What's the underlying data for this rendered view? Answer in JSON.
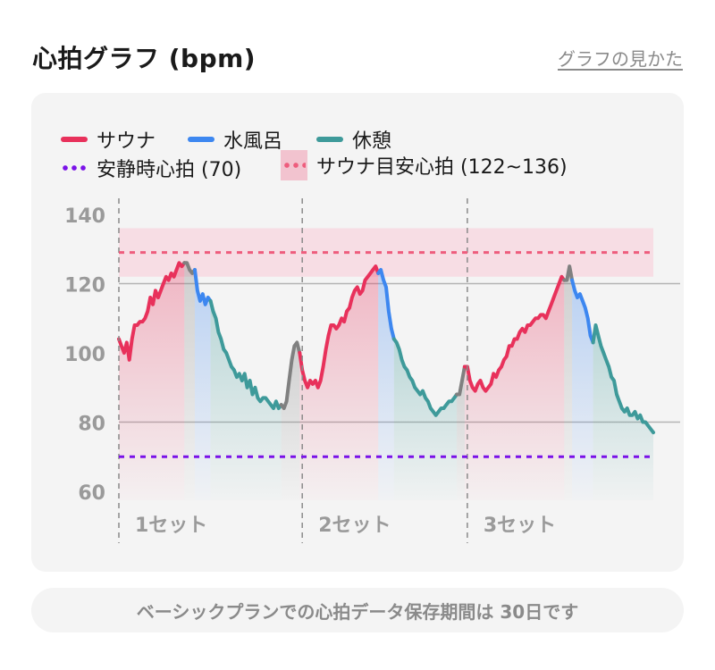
{
  "header": {
    "title": "心拍グラフ (bpm)",
    "help_link": "グラフの見かた"
  },
  "legend": {
    "sauna": "サウナ",
    "cold_bath": "水風呂",
    "rest": "休憩",
    "resting_hr": "安静時心拍 (70)",
    "sauna_target": "サウナ目安心拍 (122~136)"
  },
  "colors": {
    "sauna": "#e8315b",
    "cold_bath": "#3d87f0",
    "rest": "#3e9a9a",
    "resting_hr": "#7a12e8",
    "sauna_target_line": "#ee5d7d",
    "sauna_target_band": "#f7dde4",
    "transition": "#808080"
  },
  "footer": {
    "note": "ベーシックプランでの心拍データ保存期間は 30日です"
  },
  "chart_data": {
    "type": "line",
    "ylim": [
      60,
      140
    ],
    "yticks": [
      140,
      120,
      100,
      80,
      60
    ],
    "grid_lines": [
      120,
      80
    ],
    "resting_hr": 70,
    "sauna_target_range": [
      122,
      136
    ],
    "sauna_target_line": 129,
    "set_labels": [
      "1セット",
      "2セット",
      "3セット"
    ],
    "sets": [
      {
        "sauna": [
          104,
          102,
          100,
          103,
          98,
          104,
          108,
          108,
          109,
          109,
          110,
          112,
          116,
          114,
          118,
          116,
          118,
          120,
          122,
          121,
          123,
          122,
          124,
          126,
          125,
          126
        ],
        "transition_to_cold": [
          126,
          124,
          123,
          124
        ],
        "cold_bath": [
          118,
          115,
          117,
          114,
          116,
          115
        ],
        "rest": [
          112,
          110,
          106,
          104,
          101,
          100,
          98,
          96,
          95,
          93,
          94,
          92,
          94,
          90,
          92,
          88,
          90,
          87,
          86,
          87,
          87,
          86,
          85,
          84,
          86,
          84,
          85
        ],
        "transition_to_next": [
          84,
          86,
          92,
          98,
          102,
          103,
          100
        ]
      },
      {
        "sauna": [
          95,
          92,
          90,
          92,
          91,
          92,
          90,
          92,
          96,
          101,
          105,
          108,
          108,
          107,
          108,
          110,
          109,
          112,
          113,
          116,
          118,
          119,
          117,
          118,
          121,
          122,
          123,
          124,
          125,
          123
        ],
        "cold_bath": [
          124,
          121,
          119,
          112,
          107,
          104
        ],
        "rest": [
          103,
          101,
          98,
          96,
          95,
          93,
          92,
          90,
          89,
          88,
          89,
          87,
          86,
          84,
          83,
          82,
          83,
          84,
          84,
          85,
          86,
          86,
          87,
          88
        ],
        "transition_to_next": [
          88,
          92,
          96
        ]
      },
      {
        "sauna": [
          96,
          92,
          90,
          89,
          91,
          92,
          90,
          89,
          90,
          91,
          94,
          93,
          95,
          96,
          98,
          99,
          102,
          102,
          104,
          104,
          106,
          107,
          106,
          108,
          108,
          109,
          110,
          110,
          111,
          111,
          110,
          112,
          114,
          116,
          118,
          120,
          122,
          121
        ],
        "transition_to_cold": [
          121,
          125,
          121
        ],
        "cold_bath": [
          118,
          116,
          117,
          115,
          113,
          110,
          105,
          103
        ],
        "rest": [
          108,
          105,
          102,
          100,
          98,
          96,
          93,
          92,
          88,
          86,
          84,
          83,
          84,
          82,
          82,
          83,
          81,
          82,
          80,
          80,
          79,
          78,
          77
        ]
      }
    ]
  }
}
